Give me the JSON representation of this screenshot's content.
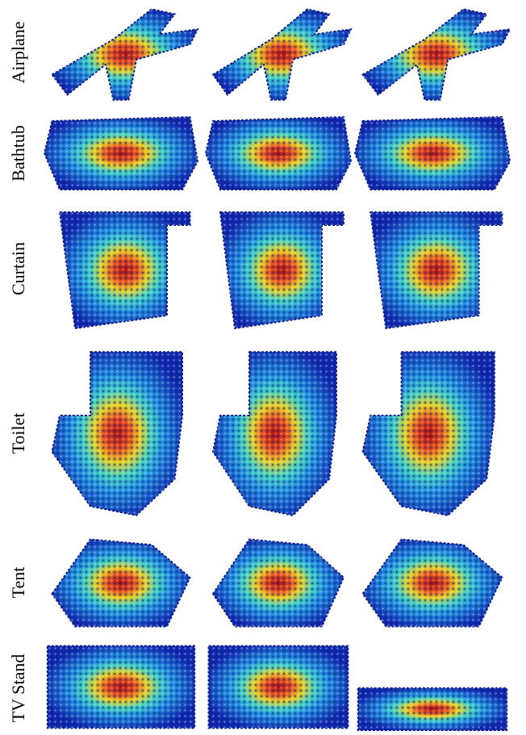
{
  "rows": [
    {
      "label": "Airplane"
    },
    {
      "label": "Bathtub"
    },
    {
      "label": "Curtain"
    },
    {
      "label": "Toilet"
    },
    {
      "label": "Tent"
    },
    {
      "label": "TV Stand"
    }
  ]
}
